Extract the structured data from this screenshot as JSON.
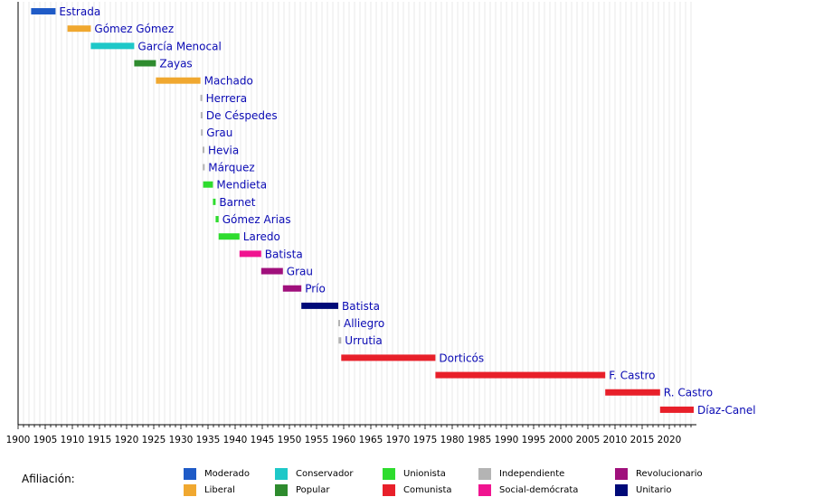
{
  "chart_data": {
    "type": "gantt",
    "title": "",
    "xlabel": "",
    "ylabel": "",
    "xlim": [
      1900,
      2024
    ],
    "x_ticks": [
      1900,
      1905,
      1910,
      1915,
      1920,
      1925,
      1930,
      1935,
      1940,
      1945,
      1950,
      1955,
      1960,
      1965,
      1970,
      1975,
      1980,
      1985,
      1990,
      1995,
      2000,
      2005,
      2010,
      2015,
      2020
    ],
    "grid": true,
    "legend": {
      "title": "Afiliación:",
      "items": [
        {
          "key": "moderado",
          "label": "Moderado",
          "color": "#1f5bc7"
        },
        {
          "key": "liberal",
          "label": "Liberal",
          "color": "#f0a830"
        },
        {
          "key": "conservador",
          "label": "Conservador",
          "color": "#1ec8c8"
        },
        {
          "key": "popular",
          "label": "Popular",
          "color": "#2e8b2e"
        },
        {
          "key": "unionista",
          "label": "Unionista",
          "color": "#2edc2e"
        },
        {
          "key": "comunista",
          "label": "Comunista",
          "color": "#e8202a"
        },
        {
          "key": "independiente",
          "label": "Independiente",
          "color": "#b4b4b4"
        },
        {
          "key": "socialdemocrata",
          "label": "Social-demócrata",
          "color": "#f01490"
        },
        {
          "key": "revolucionario",
          "label": "Revolucionario",
          "color": "#a0107c"
        },
        {
          "key": "unitario",
          "label": "Unitario",
          "color": "#000a78"
        }
      ]
    },
    "label_color": "#0a0ab4",
    "bars": [
      {
        "name": "Estrada",
        "start": 1902.4,
        "end": 1906.9,
        "party": "moderado"
      },
      {
        "name": "Gómez Gómez",
        "start": 1909.1,
        "end": 1913.4,
        "party": "liberal"
      },
      {
        "name": "García Menocal",
        "start": 1913.4,
        "end": 1921.4,
        "party": "conservador"
      },
      {
        "name": "Zayas",
        "start": 1921.4,
        "end": 1925.4,
        "party": "popular"
      },
      {
        "name": "Machado",
        "start": 1925.4,
        "end": 1933.6,
        "party": "liberal"
      },
      {
        "name": "Herrera",
        "start": 1933.6,
        "end": 1933.65,
        "party": "independiente"
      },
      {
        "name": "De Céspedes",
        "start": 1933.65,
        "end": 1933.7,
        "party": "independiente"
      },
      {
        "name": "Grau",
        "start": 1933.7,
        "end": 1934.0,
        "party": "independiente"
      },
      {
        "name": "Hevia",
        "start": 1934.0,
        "end": 1934.05,
        "party": "independiente"
      },
      {
        "name": "Márquez",
        "start": 1934.05,
        "end": 1934.1,
        "party": "independiente"
      },
      {
        "name": "Mendieta",
        "start": 1934.1,
        "end": 1935.9,
        "party": "unionista"
      },
      {
        "name": "Barnet",
        "start": 1935.9,
        "end": 1936.4,
        "party": "unionista"
      },
      {
        "name": "Gómez Arias",
        "start": 1936.4,
        "end": 1936.95,
        "party": "unionista"
      },
      {
        "name": "Laredo",
        "start": 1936.95,
        "end": 1940.8,
        "party": "unionista"
      },
      {
        "name": "Batista",
        "start": 1940.8,
        "end": 1944.8,
        "party": "socialdemocrata"
      },
      {
        "name": "Grau",
        "start": 1944.8,
        "end": 1948.8,
        "party": "revolucionario"
      },
      {
        "name": "Prío",
        "start": 1948.8,
        "end": 1952.2,
        "party": "revolucionario"
      },
      {
        "name": "Batista",
        "start": 1952.2,
        "end": 1959.0,
        "party": "unitario"
      },
      {
        "name": "Alliegro",
        "start": 1959.0,
        "end": 1959.05,
        "party": "independiente"
      },
      {
        "name": "Urrutia",
        "start": 1959.05,
        "end": 1959.55,
        "party": "independiente"
      },
      {
        "name": "Dorticós",
        "start": 1959.55,
        "end": 1976.9,
        "party": "comunista"
      },
      {
        "name": "F. Castro",
        "start": 1976.9,
        "end": 2008.2,
        "party": "comunista"
      },
      {
        "name": "R. Castro",
        "start": 2008.2,
        "end": 2018.3,
        "party": "comunista"
      },
      {
        "name": "Díaz-Canel",
        "start": 2018.3,
        "end": 2024.5,
        "party": "comunista"
      }
    ]
  }
}
